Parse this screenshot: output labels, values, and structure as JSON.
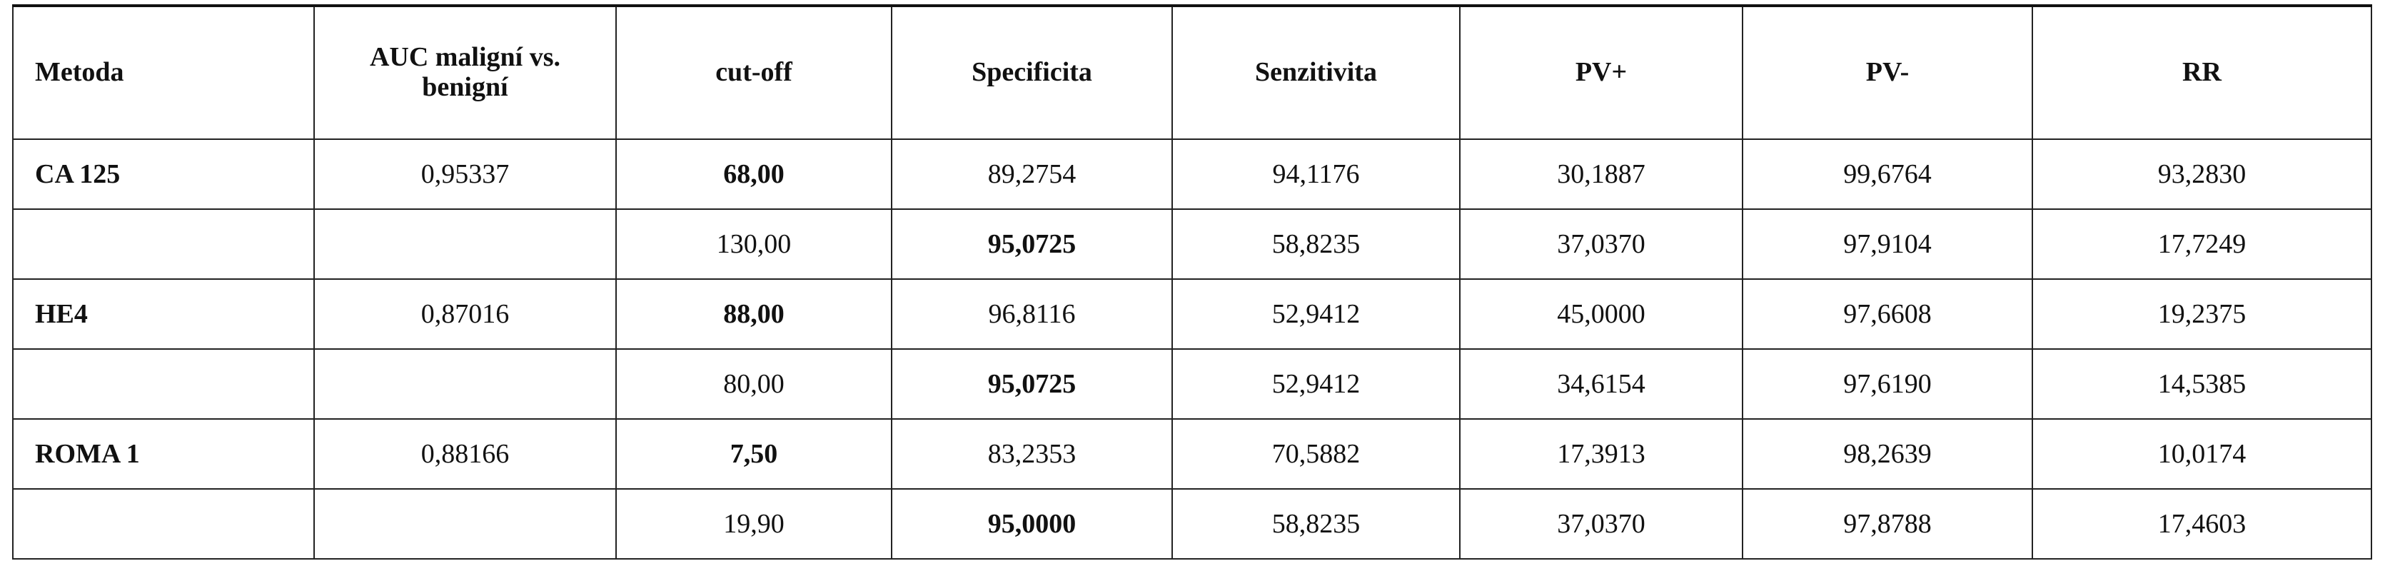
{
  "table": {
    "header": [
      "Metoda",
      "AUC maligní vs. benigní",
      "cut-off",
      "Specificita",
      "Senzitivita",
      "PV+",
      "PV-",
      "RR"
    ],
    "groups": [
      {
        "method": "CA 125",
        "auc": "0,95337",
        "rows": [
          [
            "68,00",
            "89,2754",
            "94,1176",
            "30,1887",
            "99,6764",
            "93,2830"
          ],
          [
            "130,00",
            "95,0725",
            "58,8235",
            "37,0370",
            "97,9104",
            "17,7249"
          ]
        ]
      },
      {
        "method": "HE4",
        "auc": "0,87016",
        "rows": [
          [
            "88,00",
            "96,8116",
            "52,9412",
            "45,0000",
            "97,6608",
            "19,2375"
          ],
          [
            "80,00",
            "95,0725",
            "52,9412",
            "34,6154",
            "97,6190",
            "14,5385"
          ]
        ]
      },
      {
        "method": "ROMA 1",
        "auc": "0,88166",
        "rows": [
          [
            "7,50",
            "83,2353",
            "70,5882",
            "17,3913",
            "98,2639",
            "10,0174"
          ],
          [
            "19,90",
            "95,0000",
            "58,8235",
            "37,0370",
            "97,8788",
            "17,4603"
          ]
        ]
      }
    ]
  }
}
